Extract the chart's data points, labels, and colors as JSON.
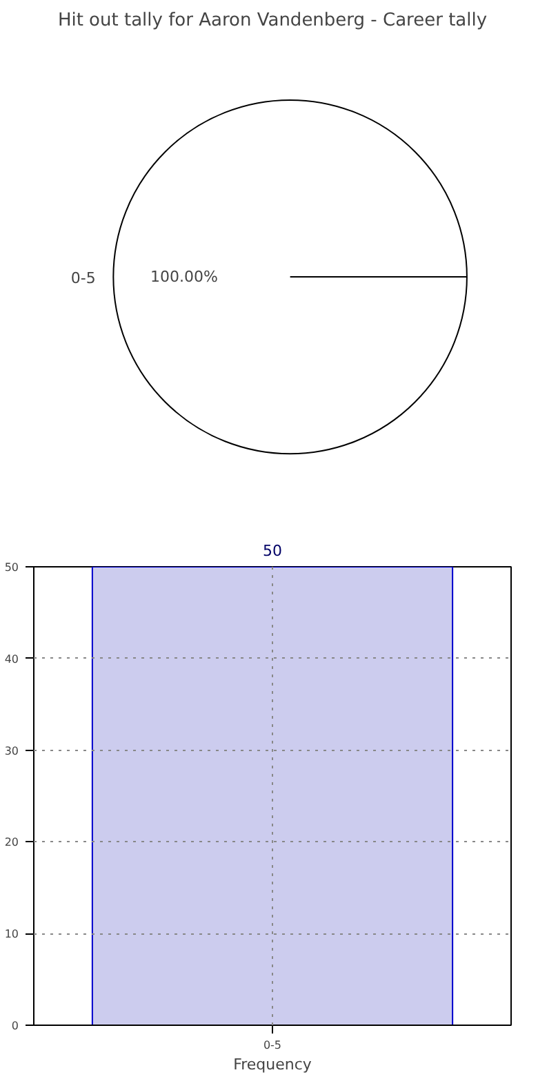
{
  "chart_data": [
    {
      "type": "pie",
      "title": "Hit out tally for Aaron Vandenberg - Career tally",
      "categories": [
        "0-5"
      ],
      "values": [
        100
      ],
      "colors": [
        "#ffffff"
      ],
      "value_labels": [
        "100.00%"
      ]
    },
    {
      "type": "bar",
      "categories": [
        "0-5"
      ],
      "values": [
        50
      ],
      "color": "#ccccee",
      "xlabel": "Frequency",
      "ylim": [
        0,
        50
      ],
      "yticks": [
        0,
        10,
        20,
        30,
        40,
        50
      ],
      "grid": true,
      "line_style": "dotted",
      "data_labels": true
    }
  ]
}
